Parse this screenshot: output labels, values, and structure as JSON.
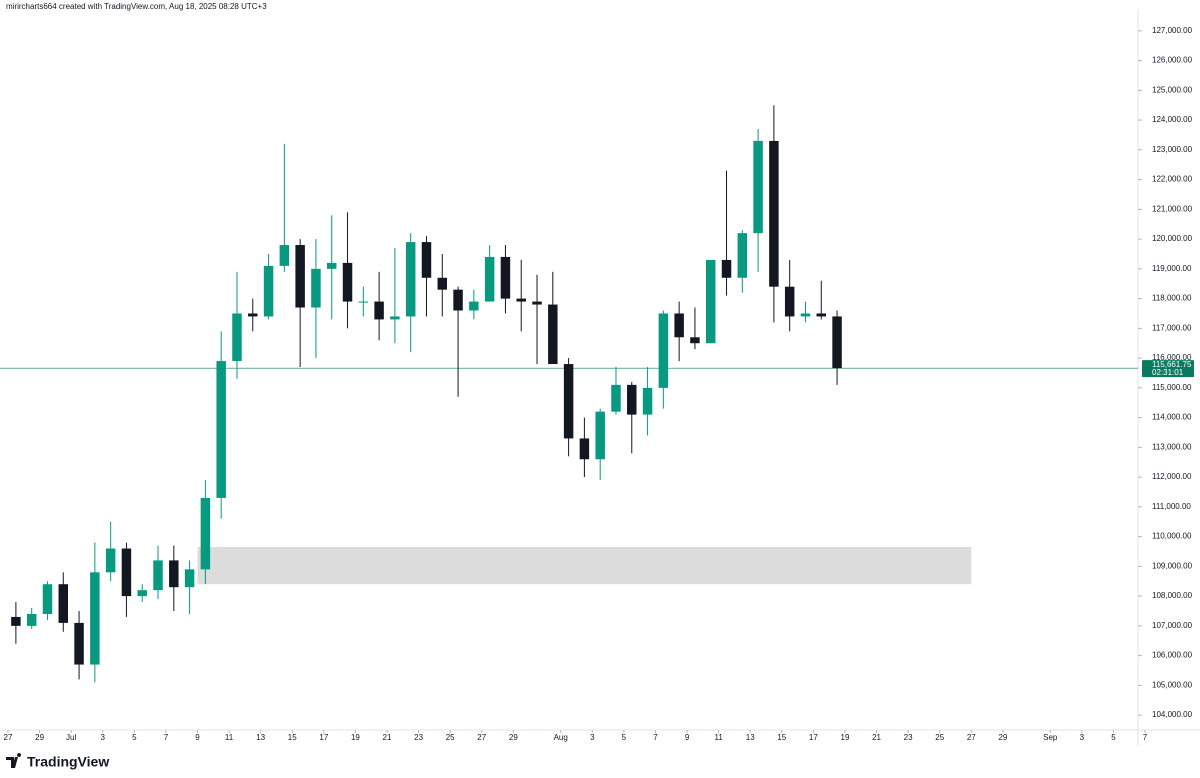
{
  "chart_data": {
    "type": "candlestick",
    "header": "mirircharts664 created with TradingView.com, Aug 18, 2025 08:28 UTC+3",
    "colors": {
      "up": "#089981",
      "down": "#131722",
      "zone": "#dcdcdc",
      "last": "#0b7a5e"
    },
    "x": [
      "Jun 27",
      "Jun 28",
      "Jun 29",
      "Jun 30",
      "Jul 1",
      "Jul 2",
      "Jul 3",
      "Jul 4",
      "Jul 5",
      "Jul 6",
      "Jul 7",
      "Jul 8",
      "Jul 9",
      "Jul 10",
      "Jul 11",
      "Jul 12",
      "Jul 13",
      "Jul 14",
      "Jul 15",
      "Jul 16",
      "Jul 17",
      "Jul 18",
      "Jul 19",
      "Jul 20",
      "Jul 21",
      "Jul 22",
      "Jul 23",
      "Jul 24",
      "Jul 25",
      "Jul 26",
      "Jul 27",
      "Jul 28",
      "Jul 29",
      "Jul 30",
      "Jul 31",
      "Aug 1",
      "Aug 2",
      "Aug 3",
      "Aug 4",
      "Aug 5",
      "Aug 6",
      "Aug 7",
      "Aug 8",
      "Aug 9",
      "Aug 10",
      "Aug 11",
      "Aug 12",
      "Aug 13",
      "Aug 14",
      "Aug 15",
      "Aug 16",
      "Aug 17",
      "Aug 18"
    ],
    "open": [
      107300,
      107000,
      107400,
      108400,
      107100,
      105700,
      108800,
      109600,
      108000,
      108200,
      109200,
      108300,
      108900,
      111300,
      115900,
      117500,
      117400,
      119100,
      119800,
      117700,
      119000,
      119200,
      117900,
      117900,
      117300,
      117400,
      119900,
      118700,
      118300,
      117600,
      117900,
      119400,
      118000,
      117900,
      117800,
      115800,
      113300,
      112600,
      114200,
      115100,
      114100,
      115000,
      117500,
      116700,
      116500,
      119300,
      118700,
      120200,
      123300,
      118400,
      117400,
      117500,
      117400
    ],
    "high": [
      107800,
      107600,
      108500,
      108800,
      107500,
      109800,
      110500,
      109800,
      108400,
      109700,
      109700,
      109200,
      111900,
      116900,
      118900,
      118000,
      119500,
      123200,
      120000,
      120000,
      120800,
      120900,
      118400,
      118900,
      119700,
      120200,
      120100,
      119500,
      118400,
      118300,
      119800,
      119800,
      119300,
      118800,
      118900,
      116000,
      114000,
      114300,
      115700,
      115200,
      115700,
      117600,
      117900,
      117700,
      119300,
      122300,
      120300,
      123700,
      124500,
      119300,
      117900,
      118600,
      117600
    ],
    "low": [
      106400,
      106900,
      107200,
      106800,
      105200,
      105100,
      108500,
      107300,
      107800,
      107900,
      107500,
      107400,
      108400,
      110600,
      115300,
      116900,
      117300,
      118900,
      115700,
      116000,
      117300,
      117000,
      117400,
      116600,
      116500,
      116200,
      117400,
      117400,
      114700,
      117300,
      117900,
      117500,
      116900,
      115800,
      115900,
      112700,
      112000,
      111900,
      114100,
      112800,
      113400,
      114300,
      115900,
      116300,
      116500,
      118100,
      118200,
      118900,
      117200,
      116900,
      117200,
      117300,
      115100
    ],
    "close": [
      107000,
      107400,
      108400,
      107100,
      105700,
      108800,
      109600,
      108000,
      108200,
      109200,
      108300,
      108900,
      111300,
      115900,
      117500,
      117400,
      119100,
      119800,
      117700,
      119000,
      119200,
      117900,
      117900,
      117300,
      117400,
      119900,
      118700,
      118300,
      117600,
      117900,
      119400,
      118000,
      117900,
      117800,
      115800,
      113300,
      112600,
      114200,
      115100,
      114100,
      115000,
      117500,
      116700,
      116500,
      119300,
      118700,
      120200,
      123300,
      118400,
      117400,
      117500,
      117400,
      115661.75
    ],
    "zone": {
      "from": "Jul 9",
      "to": "Aug 27",
      "low": 108400,
      "high": 109650
    },
    "last": {
      "value": 115661.75,
      "label": "115,661.75",
      "countdown": "02:31:01"
    },
    "xlim": [
      "Jun 27",
      "Sep 7"
    ],
    "xticks": [
      {
        "value": "Jun 27",
        "label": "27"
      },
      {
        "value": "Jun 29",
        "label": "29"
      },
      {
        "value": "Jul 1",
        "label": "Jul"
      },
      {
        "value": "Jul 3",
        "label": "3"
      },
      {
        "value": "Jul 5",
        "label": "5"
      },
      {
        "value": "Jul 7",
        "label": "7"
      },
      {
        "value": "Jul 9",
        "label": "9"
      },
      {
        "value": "Jul 11",
        "label": "11"
      },
      {
        "value": "Jul 13",
        "label": "13"
      },
      {
        "value": "Jul 15",
        "label": "15"
      },
      {
        "value": "Jul 17",
        "label": "17"
      },
      {
        "value": "Jul 19",
        "label": "19"
      },
      {
        "value": "Jul 21",
        "label": "21"
      },
      {
        "value": "Jul 23",
        "label": "23"
      },
      {
        "value": "Jul 25",
        "label": "25"
      },
      {
        "value": "Jul 27",
        "label": "27"
      },
      {
        "value": "Jul 29",
        "label": "29"
      },
      {
        "value": "Aug 1",
        "label": "Aug"
      },
      {
        "value": "Aug 3",
        "label": "3"
      },
      {
        "value": "Aug 5",
        "label": "5"
      },
      {
        "value": "Aug 7",
        "label": "7"
      },
      {
        "value": "Aug 9",
        "label": "9"
      },
      {
        "value": "Aug 11",
        "label": "11"
      },
      {
        "value": "Aug 13",
        "label": "13"
      },
      {
        "value": "Aug 15",
        "label": "15"
      },
      {
        "value": "Aug 17",
        "label": "17"
      },
      {
        "value": "Aug 19",
        "label": "19"
      },
      {
        "value": "Aug 21",
        "label": "21"
      },
      {
        "value": "Aug 23",
        "label": "23"
      },
      {
        "value": "Aug 25",
        "label": "25"
      },
      {
        "value": "Aug 27",
        "label": "27"
      },
      {
        "value": "Aug 29",
        "label": "29"
      },
      {
        "value": "Sep 1",
        "label": "Sep"
      },
      {
        "value": "Sep 3",
        "label": "3"
      },
      {
        "value": "Sep 5",
        "label": "5"
      },
      {
        "value": "Sep 7",
        "label": "7"
      }
    ],
    "ylim": [
      103500,
      127700
    ],
    "yticks": [
      {
        "value": 104000,
        "label": "104,000.00"
      },
      {
        "value": 105000,
        "label": "105,000.00"
      },
      {
        "value": 106000,
        "label": "106,000.00"
      },
      {
        "value": 107000,
        "label": "107,000.00"
      },
      {
        "value": 108000,
        "label": "108,000.00"
      },
      {
        "value": 109000,
        "label": "109,000.00"
      },
      {
        "value": 110000,
        "label": "110,000.00"
      },
      {
        "value": 111000,
        "label": "111,000.00"
      },
      {
        "value": 112000,
        "label": "112,000.00"
      },
      {
        "value": 113000,
        "label": "113,000.00"
      },
      {
        "value": 114000,
        "label": "114,000.00"
      },
      {
        "value": 115000,
        "label": "115,000.00"
      },
      {
        "value": 116000,
        "label": "116,000.00"
      },
      {
        "value": 117000,
        "label": "117,000.00"
      },
      {
        "value": 118000,
        "label": "118,000.00"
      },
      {
        "value": 119000,
        "label": "119,000.00"
      },
      {
        "value": 120000,
        "label": "120,000.00"
      },
      {
        "value": 121000,
        "label": "121,000.00"
      },
      {
        "value": 122000,
        "label": "122,000.00"
      },
      {
        "value": 123000,
        "label": "123,000.00"
      },
      {
        "value": 124000,
        "label": "124,000.00"
      },
      {
        "value": 125000,
        "label": "125,000.00"
      },
      {
        "value": 126000,
        "label": "126,000.00"
      },
      {
        "value": 127000,
        "label": "127,000.00"
      }
    ]
  },
  "brand": "TradingView"
}
